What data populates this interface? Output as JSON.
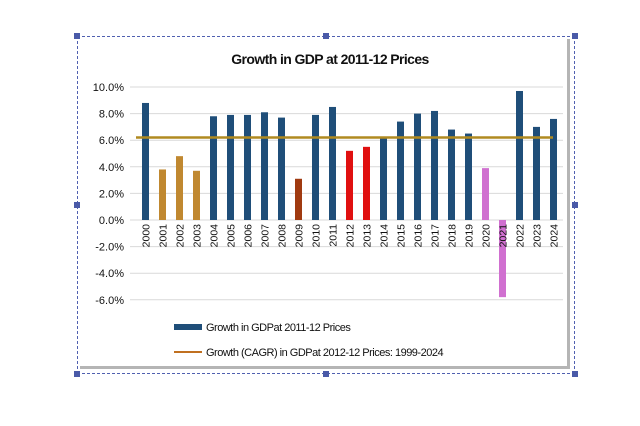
{
  "chart_data": {
    "type": "bar",
    "title": "Growth in GDP at 2011-12 Prices",
    "xlabel": "",
    "ylabel": "",
    "ylim": [
      -6,
      10
    ],
    "yticks": [
      "10.0%",
      "8.0%",
      "6.0%",
      "4.0%",
      "2.0%",
      "0.0%",
      "-2.0%",
      "-4.0%",
      "-6.0%"
    ],
    "ytick_values": [
      10,
      8,
      6,
      4,
      2,
      0,
      -2,
      -4,
      -6
    ],
    "grid": true,
    "categories": [
      "2000",
      "2001",
      "2002",
      "2003",
      "2004",
      "2005",
      "2006",
      "2007",
      "2008",
      "2009",
      "2010",
      "2011",
      "2012",
      "2013",
      "2014",
      "2015",
      "2016",
      "2017",
      "2018",
      "2019",
      "2020",
      "2021",
      "2022",
      "2023",
      "2024"
    ],
    "series": [
      {
        "name": "Growth in GDPat 2011-12 Prices",
        "type": "bar",
        "values": [
          8.8,
          3.8,
          4.8,
          3.7,
          7.8,
          7.9,
          7.9,
          8.1,
          7.7,
          3.1,
          7.9,
          8.5,
          5.2,
          5.5,
          6.2,
          7.4,
          8.0,
          8.2,
          6.8,
          6.5,
          3.9,
          -5.8,
          9.7,
          7.0,
          7.6
        ],
        "colors": [
          "#1f4e79",
          "#c08830",
          "#c08830",
          "#c08830",
          "#1f4e79",
          "#1f4e79",
          "#1f4e79",
          "#1f4e79",
          "#1f4e79",
          "#a03a10",
          "#1f4e79",
          "#1f4e79",
          "#e01010",
          "#e01010",
          "#1f4e79",
          "#1f4e79",
          "#1f4e79",
          "#1f4e79",
          "#1f4e79",
          "#1f4e79",
          "#d070d0",
          "#d070d0",
          "#1f4e79",
          "#1f4e79",
          "#1f4e79"
        ]
      },
      {
        "name": "Growth (CAGR) in GDPat 2012-12 Prices: 1999-2024",
        "type": "line",
        "value": 6.2,
        "color": "#b08a20"
      }
    ],
    "legend": {
      "placement": "bottom",
      "items": [
        {
          "label": "Growth in GDPat 2011-12 Prices",
          "color": "#1f4e79",
          "kind": "bar"
        },
        {
          "label": "Growth (CAGR) in GDPat 2012-12 Prices: 1999-2024",
          "color": "#c07020",
          "kind": "line"
        }
      ]
    }
  }
}
